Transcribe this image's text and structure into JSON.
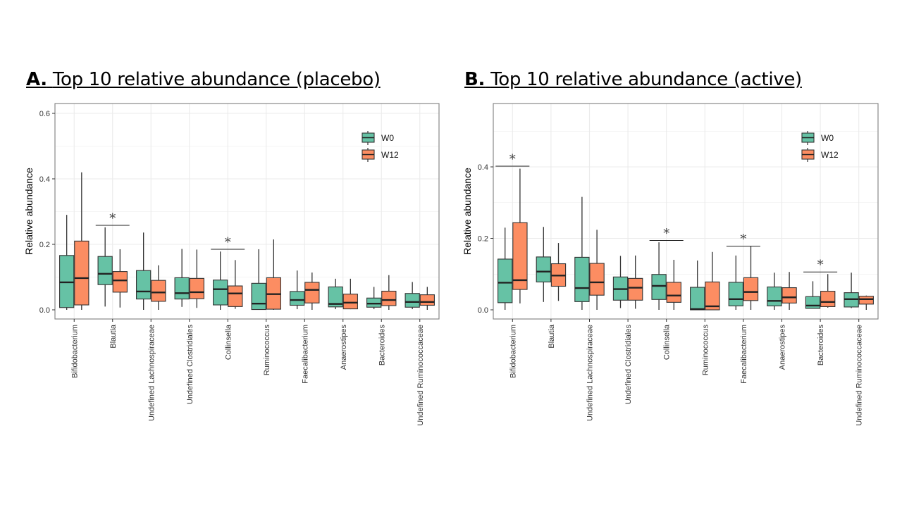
{
  "panels": [
    {
      "letter": "A.",
      "title": "Top 10 relative abundance (placebo)"
    },
    {
      "letter": "B.",
      "title": "Top 10 relative abundance (active)"
    }
  ],
  "colors": {
    "W0": "#66c2a5",
    "W12": "#fc8d62",
    "outline": "#333333"
  },
  "chart_data": [
    {
      "type": "boxplot",
      "title": "A. Top 10 relative abundance (placebo)",
      "xlabel": "",
      "ylabel": "Relative abundance",
      "ylim": [
        -0.015,
        0.63
      ],
      "yticks": [
        0.0,
        0.2,
        0.4,
        0.6
      ],
      "ytick_labels": [
        "0.0",
        "0.2",
        "0.4",
        "0.6"
      ],
      "grid": true,
      "legend": {
        "position": "top-right",
        "entries": [
          "W0",
          "W12"
        ]
      },
      "categories": [
        "Bifidobacterium",
        "Blautia",
        "Undefined Lachnospiraceae",
        "Undefined Clostridiales",
        "Collinsella",
        "Ruminococcus",
        "Faecalibacterium",
        "Anaerostipes",
        "Bacteroides",
        "Undefined Ruminococcaceae"
      ],
      "series": [
        {
          "name": "W0",
          "boxes": [
            [
              0.0,
              0.007,
              0.084,
              0.166,
              0.29
            ],
            [
              0.01,
              0.077,
              0.11,
              0.163,
              0.252
            ],
            [
              0.0,
              0.033,
              0.056,
              0.12,
              0.236
            ],
            [
              0.009,
              0.033,
              0.051,
              0.098,
              0.186
            ],
            [
              0.0,
              0.015,
              0.063,
              0.091,
              0.178
            ],
            [
              0.0,
              0.001,
              0.019,
              0.081,
              0.185
            ],
            [
              0.002,
              0.014,
              0.03,
              0.056,
              0.12
            ],
            [
              0.002,
              0.009,
              0.018,
              0.07,
              0.095
            ],
            [
              0.002,
              0.008,
              0.019,
              0.036,
              0.07
            ],
            [
              0.002,
              0.008,
              0.024,
              0.05,
              0.085
            ]
          ]
        },
        {
          "name": "W12",
          "boxes": [
            [
              0.0,
              0.015,
              0.097,
              0.21,
              0.42
            ],
            [
              0.007,
              0.054,
              0.09,
              0.117,
              0.185
            ],
            [
              0.0,
              0.026,
              0.053,
              0.09,
              0.136
            ],
            [
              0.006,
              0.034,
              0.054,
              0.096,
              0.184
            ],
            [
              0.003,
              0.01,
              0.05,
              0.073,
              0.152
            ],
            [
              0.0,
              0.002,
              0.048,
              0.098,
              0.215
            ],
            [
              0.0,
              0.021,
              0.061,
              0.084,
              0.114
            ],
            [
              0.002,
              0.003,
              0.022,
              0.048,
              0.095
            ],
            [
              0.0,
              0.013,
              0.03,
              0.057,
              0.106
            ],
            [
              0.0,
              0.014,
              0.024,
              0.046,
              0.07
            ]
          ]
        }
      ],
      "box_format": "[whisker_low, q1, median, q3, whisker_high]",
      "significance": [
        {
          "category": "Blautia",
          "label": "*",
          "y": 0.258
        },
        {
          "category": "Collinsella",
          "label": "*",
          "y": 0.185
        }
      ]
    },
    {
      "type": "boxplot",
      "title": "B. Top 10 relative abundance (active)",
      "xlabel": "",
      "ylabel": "Relative abundance",
      "ylim": [
        -0.025,
        0.555
      ],
      "yticks": [
        0.0,
        0.2,
        0.4
      ],
      "ytick_labels": [
        "0.0",
        "0.2",
        "0.4"
      ],
      "grid": true,
      "legend": {
        "position": "top-right",
        "entries": [
          "W0",
          "W12"
        ]
      },
      "categories": [
        "Bifidobacterium",
        "Blautia",
        "Undefined Lachnospiraceae",
        "Undefined Clostridiales",
        "Collinsella",
        "Ruminococcus",
        "Faecalibacterium",
        "Anaerostipes",
        "Bacteroides",
        "Undefined Ruminococcaceae"
      ],
      "series": [
        {
          "name": "W0",
          "boxes": [
            [
              0.0,
              0.02,
              0.076,
              0.142,
              0.23
            ],
            [
              0.022,
              0.078,
              0.107,
              0.148,
              0.232
            ],
            [
              0.0,
              0.023,
              0.061,
              0.147,
              0.316
            ],
            [
              0.005,
              0.027,
              0.058,
              0.092,
              0.151
            ],
            [
              0.0,
              0.029,
              0.067,
              0.099,
              0.189
            ],
            [
              0.0,
              0.0,
              0.002,
              0.063,
              0.138
            ],
            [
              0.0,
              0.011,
              0.03,
              0.077,
              0.152
            ],
            [
              0.0,
              0.011,
              0.025,
              0.064,
              0.104
            ],
            [
              0.003,
              0.004,
              0.012,
              0.037,
              0.08
            ],
            [
              0.005,
              0.008,
              0.03,
              0.048,
              0.104
            ]
          ]
        },
        {
          "name": "W12",
          "boxes": [
            [
              0.018,
              0.057,
              0.083,
              0.244,
              0.395
            ],
            [
              0.025,
              0.066,
              0.096,
              0.129,
              0.187
            ],
            [
              0.0,
              0.041,
              0.077,
              0.13,
              0.224
            ],
            [
              0.003,
              0.027,
              0.062,
              0.088,
              0.152
            ],
            [
              0.0,
              0.021,
              0.04,
              0.077,
              0.14
            ],
            [
              0.0,
              0.0,
              0.01,
              0.078,
              0.162
            ],
            [
              0.0,
              0.026,
              0.05,
              0.09,
              0.178
            ],
            [
              0.0,
              0.019,
              0.035,
              0.062,
              0.106
            ],
            [
              0.006,
              0.009,
              0.022,
              0.052,
              0.1
            ],
            [
              0.0,
              0.016,
              0.03,
              0.038,
              0.04
            ]
          ]
        }
      ],
      "box_format": "[whisker_low, q1, median, q3, whisker_high]",
      "significance": [
        {
          "category": "Bifidobacterium",
          "label": "*",
          "y": 0.402
        },
        {
          "category": "Collinsella",
          "label": "*",
          "y": 0.194
        },
        {
          "category": "Faecalibacterium",
          "label": "*",
          "y": 0.178
        },
        {
          "category": "Bacteroides",
          "label": "*",
          "y": 0.106
        }
      ]
    }
  ]
}
